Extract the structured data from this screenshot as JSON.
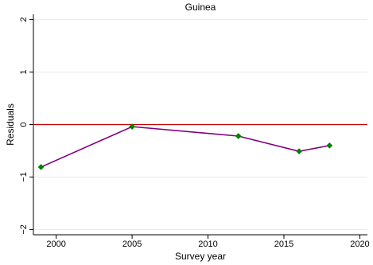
{
  "chart_data": {
    "type": "line",
    "title": "Guinea",
    "xlabel": "Survey year",
    "ylabel": "Residuals",
    "xlim": [
      1998.5,
      2020.5
    ],
    "ylim": [
      -2.1,
      2.1
    ],
    "x_ticks": [
      2000,
      2005,
      2010,
      2015,
      2020
    ],
    "x_tick_labels": [
      "2000",
      "2005",
      "2010",
      "2015",
      "2020"
    ],
    "y_ticks": [
      -2,
      -1,
      0,
      1,
      2
    ],
    "y_tick_labels": [
      "−2",
      "−1",
      "0",
      "1",
      "2"
    ],
    "grid": true,
    "reference_line": {
      "y": 0,
      "color": "#cc0000"
    },
    "series": [
      {
        "x": [
          1999,
          2005,
          2012,
          2016,
          2018
        ],
        "y": [
          -0.81,
          -0.04,
          -0.22,
          -0.51,
          -0.4
        ],
        "line_color": "#800080",
        "marker_color": "#008000",
        "marker": "diamond"
      }
    ]
  }
}
